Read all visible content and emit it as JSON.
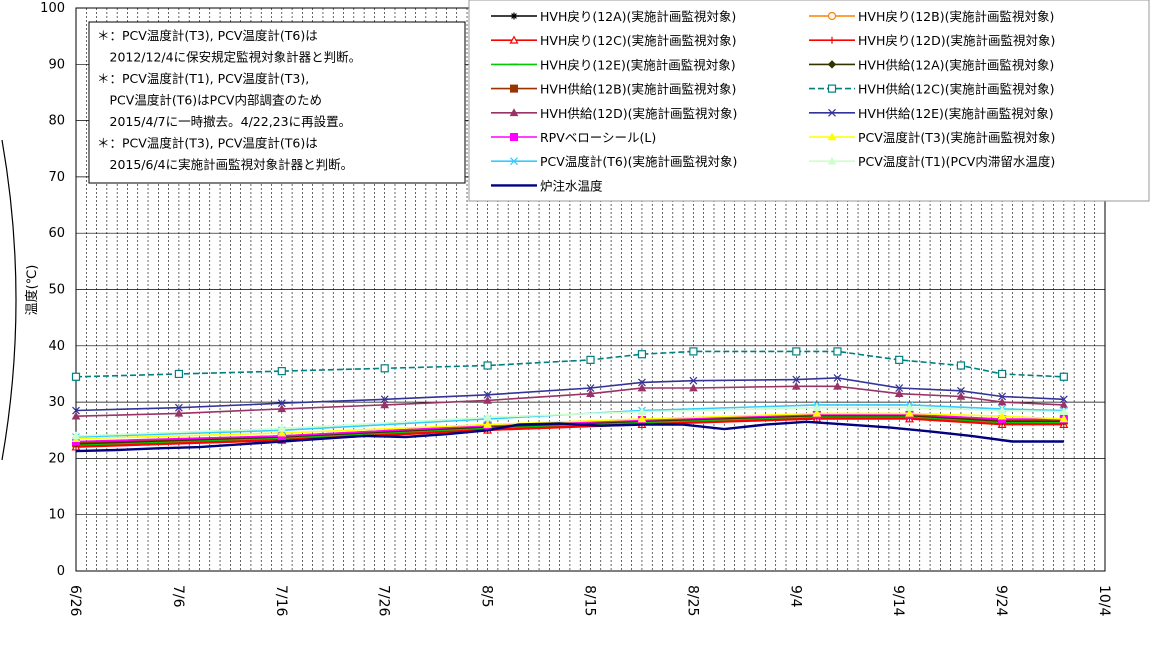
{
  "chart_data": {
    "type": "line",
    "title": "",
    "xlabel": "",
    "ylabel": "温度(℃)",
    "ylim": [
      0,
      100
    ],
    "yticks": [
      0,
      10,
      20,
      30,
      40,
      50,
      60,
      70,
      80,
      90,
      100
    ],
    "xlim": [
      "2015-06-26",
      "2015-10-04"
    ],
    "xticks": [
      "6/26",
      "7/6",
      "7/16",
      "7/26",
      "8/5",
      "8/15",
      "8/25",
      "9/4",
      "9/14",
      "9/24",
      "10/4"
    ],
    "grid": {
      "horizontal": true,
      "vertical_daily": true
    },
    "legend_position": "top-right",
    "notes": [
      "＊：PCV温度計(T3), PCV温度計(T6)は",
      "　2012/12/4に保安規定監視対象計器と判断。",
      "＊：PCV温度計(T1), PCV温度計(T3),",
      "　PCV温度計(T6)はPCV内部調査のため",
      "　2015/4/7に一時撤去。4/22,23に再設置。",
      "＊：PCV温度計(T3), PCV温度計(T6)は",
      "　2015/6/4に実施計画監視対象計器と判断。"
    ],
    "series": [
      {
        "name": "HVH戻り(12A)(実施計画監視対象)",
        "color": "#000000",
        "marker": "asterisk",
        "x": [
          "2015-06-26",
          "2015-07-16",
          "2015-08-05",
          "2015-08-20",
          "2015-09-06",
          "2015-09-15",
          "2015-09-24",
          "2015-09-30"
        ],
        "values": [
          22.5,
          23.5,
          25.5,
          26.5,
          27.5,
          27.5,
          26.5,
          26.5
        ]
      },
      {
        "name": "HVH戻り(12B)(実施計画監視対象)",
        "color": "#ff8000",
        "marker": "circle-open",
        "x": [
          "2015-06-26",
          "2015-07-16",
          "2015-08-05",
          "2015-08-20",
          "2015-09-06",
          "2015-09-15",
          "2015-09-24",
          "2015-09-30"
        ],
        "values": [
          22.3,
          23.3,
          25.3,
          26.3,
          27.3,
          27.3,
          26.3,
          26.3
        ]
      },
      {
        "name": "HVH戻り(12C)(実施計画監視対象)",
        "color": "#ff0000",
        "marker": "triangle-open",
        "x": [
          "2015-06-26",
          "2015-07-16",
          "2015-08-05",
          "2015-08-20",
          "2015-09-06",
          "2015-09-15",
          "2015-09-24",
          "2015-09-30"
        ],
        "values": [
          22.0,
          23.2,
          25.0,
          26.0,
          27.0,
          27.0,
          26.0,
          26.0
        ]
      },
      {
        "name": "HVH戻り(12D)(実施計画監視対象)",
        "color": "#ff0000",
        "marker": "plus",
        "x": [
          "2015-06-26",
          "2015-07-16",
          "2015-08-05",
          "2015-08-20",
          "2015-09-06",
          "2015-09-15",
          "2015-09-24",
          "2015-09-30"
        ],
        "values": [
          22.2,
          23.4,
          25.2,
          26.2,
          27.2,
          27.2,
          26.2,
          26.2
        ]
      },
      {
        "name": "HVH戻り(12E)(実施計画監視対象)",
        "color": "#00cc00",
        "marker": "dash",
        "x": [
          "2015-06-26",
          "2015-07-16",
          "2015-08-05",
          "2015-08-20",
          "2015-09-06",
          "2015-09-15",
          "2015-09-24",
          "2015-09-30"
        ],
        "values": [
          22.4,
          23.6,
          25.4,
          26.4,
          27.4,
          27.4,
          26.4,
          26.4
        ]
      },
      {
        "name": "HVH供給(12A)(実施計画監視対象)",
        "color": "#333300",
        "marker": "diamond",
        "x": [
          "2015-06-26",
          "2015-07-16",
          "2015-08-05",
          "2015-08-20",
          "2015-09-06",
          "2015-09-15",
          "2015-09-24",
          "2015-09-30"
        ],
        "values": [
          22.6,
          23.8,
          25.6,
          26.6,
          27.6,
          27.6,
          26.6,
          26.6
        ]
      },
      {
        "name": "HVH供給(12B)(実施計画監視対象)",
        "color": "#993300",
        "marker": "square",
        "x": [
          "2015-06-26",
          "2015-07-16",
          "2015-08-05",
          "2015-08-20",
          "2015-09-06",
          "2015-09-15",
          "2015-09-24",
          "2015-09-30"
        ],
        "values": [
          22.8,
          24.0,
          25.8,
          26.8,
          27.8,
          27.8,
          26.8,
          26.8
        ]
      },
      {
        "name": "HVH供給(12C)(実施計画監視対象)",
        "color": "#008080",
        "marker": "square-open",
        "dashed": true,
        "x": [
          "2015-06-26",
          "2015-07-06",
          "2015-07-16",
          "2015-07-26",
          "2015-08-05",
          "2015-08-15",
          "2015-08-20",
          "2015-08-25",
          "2015-09-04",
          "2015-09-08",
          "2015-09-14",
          "2015-09-20",
          "2015-09-24",
          "2015-09-30"
        ],
        "values": [
          34.5,
          35.0,
          35.5,
          36.0,
          36.5,
          37.5,
          38.5,
          39.0,
          39.0,
          39.0,
          37.5,
          36.5,
          35.0,
          34.5
        ]
      },
      {
        "name": "HVH供給(12D)(実施計画監視対象)",
        "color": "#993366",
        "marker": "triangle",
        "x": [
          "2015-06-26",
          "2015-07-06",
          "2015-07-16",
          "2015-07-26",
          "2015-08-05",
          "2015-08-15",
          "2015-08-20",
          "2015-08-25",
          "2015-09-04",
          "2015-09-08",
          "2015-09-14",
          "2015-09-20",
          "2015-09-24",
          "2015-09-30"
        ],
        "values": [
          27.5,
          28.0,
          28.8,
          29.5,
          30.3,
          31.5,
          32.5,
          32.5,
          32.8,
          32.8,
          31.5,
          31.0,
          30.0,
          29.5
        ]
      },
      {
        "name": "HVH供給(12E)(実施計画監視対象)",
        "color": "#333399",
        "marker": "x",
        "x": [
          "2015-06-26",
          "2015-07-06",
          "2015-07-16",
          "2015-07-26",
          "2015-08-05",
          "2015-08-15",
          "2015-08-20",
          "2015-08-25",
          "2015-09-04",
          "2015-09-08",
          "2015-09-14",
          "2015-09-20",
          "2015-09-24",
          "2015-09-30"
        ],
        "values": [
          28.5,
          29.0,
          29.8,
          30.5,
          31.3,
          32.5,
          33.5,
          33.8,
          34.0,
          34.3,
          32.5,
          32.0,
          31.0,
          30.5
        ]
      },
      {
        "name": "RPVベローシール(L)",
        "color": "#ff00ff",
        "marker": "square",
        "x": [
          "2015-06-26",
          "2015-07-16",
          "2015-08-05",
          "2015-08-20",
          "2015-09-06",
          "2015-09-15",
          "2015-09-24",
          "2015-09-30"
        ],
        "values": [
          23.0,
          24.0,
          25.8,
          26.8,
          27.8,
          27.8,
          27.0,
          27.0
        ]
      },
      {
        "name": "PCV温度計(T3)(実施計画監視対象)",
        "color": "#ffff00",
        "marker": "triangle",
        "x": [
          "2015-06-26",
          "2015-07-16",
          "2015-08-05",
          "2015-08-20",
          "2015-09-06",
          "2015-09-15",
          "2015-09-24",
          "2015-09-30"
        ],
        "values": [
          23.5,
          24.5,
          26.0,
          27.0,
          28.0,
          28.0,
          27.5,
          27.0
        ]
      },
      {
        "name": "PCV温度計(T6)(実施計画監視対象)",
        "color": "#33ccff",
        "marker": "x",
        "x": [
          "2015-06-26",
          "2015-07-16",
          "2015-08-05",
          "2015-08-20",
          "2015-09-06",
          "2015-09-15",
          "2015-09-24",
          "2015-09-30"
        ],
        "values": [
          23.8,
          25.0,
          27.0,
          28.5,
          29.5,
          29.5,
          28.8,
          28.5
        ]
      },
      {
        "name": "PCV温度計(T1)(PCV内滞留水温度)",
        "color": "#ccffcc",
        "marker": "triangle",
        "x": [
          "2015-06-26",
          "2015-07-16",
          "2015-08-05",
          "2015-08-20",
          "2015-09-06",
          "2015-09-15",
          "2015-09-24",
          "2015-09-30"
        ],
        "values": [
          24.0,
          25.3,
          27.3,
          28.3,
          29.0,
          29.0,
          28.5,
          28.3
        ]
      },
      {
        "name": "炉注水温度",
        "color": "#000080",
        "marker": "none",
        "thick": true,
        "x": [
          "2015-06-26",
          "2015-06-30",
          "2015-07-04",
          "2015-07-08",
          "2015-07-12",
          "2015-07-16",
          "2015-07-20",
          "2015-07-24",
          "2015-07-28",
          "2015-08-01",
          "2015-08-05",
          "2015-08-08",
          "2015-08-12",
          "2015-08-16",
          "2015-08-20",
          "2015-08-24",
          "2015-08-28",
          "2015-09-01",
          "2015-09-05",
          "2015-09-09",
          "2015-09-13",
          "2015-09-17",
          "2015-09-21",
          "2015-09-25",
          "2015-09-30"
        ],
        "values": [
          21.3,
          21.5,
          21.8,
          22.0,
          22.5,
          23.0,
          23.5,
          24.0,
          23.8,
          24.3,
          25.0,
          26.0,
          26.2,
          25.8,
          26.0,
          26.0,
          25.2,
          26.0,
          26.5,
          26.0,
          25.5,
          24.8,
          24.0,
          23.0,
          23.0
        ]
      }
    ]
  }
}
